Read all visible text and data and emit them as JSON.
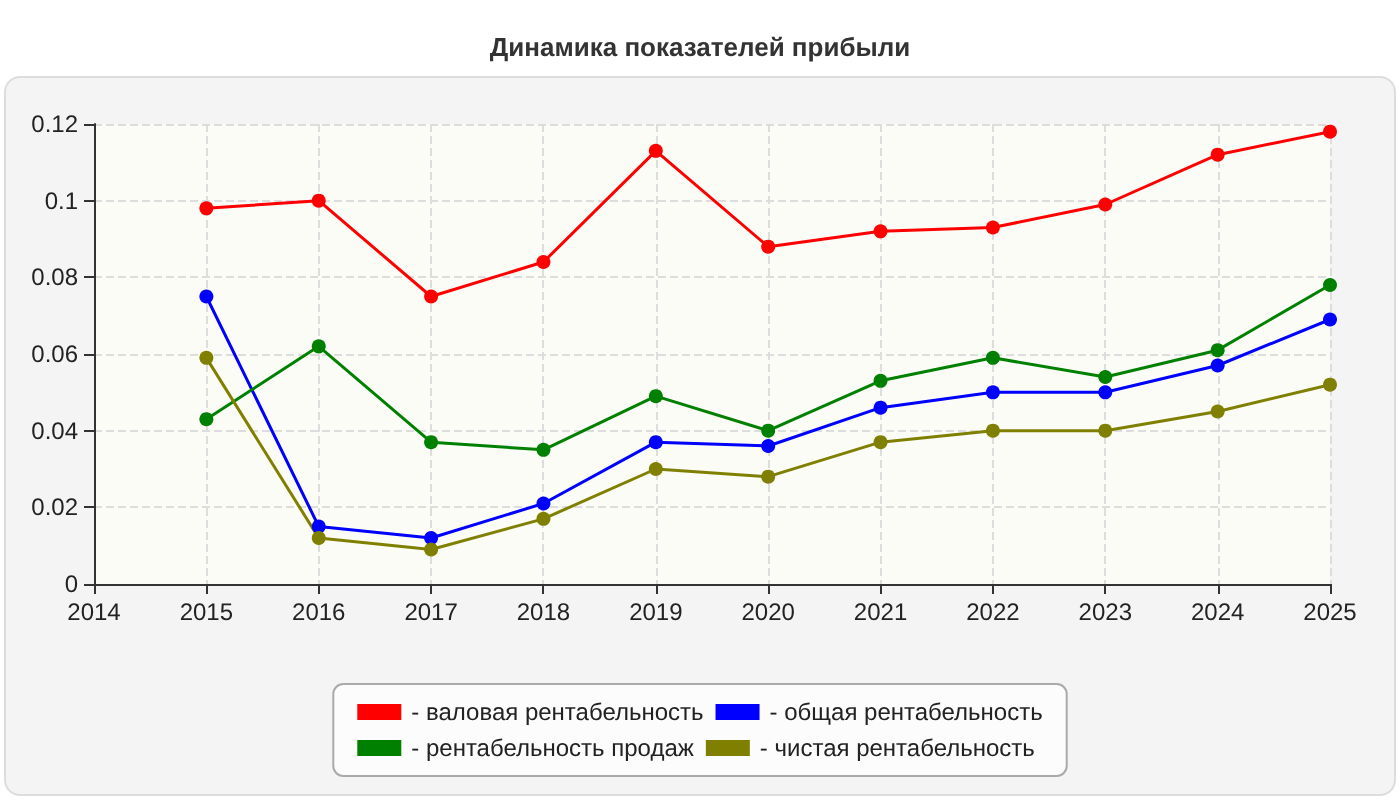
{
  "chart_data": {
    "type": "line",
    "title": "Динамика показателей прибыли",
    "x": [
      2015,
      2016,
      2017,
      2018,
      2019,
      2020,
      2021,
      2022,
      2023,
      2024,
      2025
    ],
    "xlim": [
      2014,
      2025
    ],
    "xticks": [
      2014,
      2015,
      2016,
      2017,
      2018,
      2019,
      2020,
      2021,
      2022,
      2023,
      2024,
      2025
    ],
    "ylim": [
      0,
      0.12
    ],
    "yticks": [
      0,
      0.02,
      0.04,
      0.06,
      0.08,
      0.1,
      0.12
    ],
    "grid": true,
    "legend": "bottom",
    "marker": "circle",
    "line_style": "solid",
    "series": [
      {
        "name": "- валовая рентабельность",
        "color": "#ff0000",
        "values": [
          0.098,
          0.1,
          0.075,
          0.084,
          0.113,
          0.088,
          0.092,
          0.093,
          0.099,
          0.112,
          0.118
        ]
      },
      {
        "name": "- общая рентабельность",
        "color": "#0000ff",
        "values": [
          0.075,
          0.015,
          0.012,
          0.021,
          0.037,
          0.036,
          0.046,
          0.05,
          0.05,
          0.057,
          0.069
        ]
      },
      {
        "name": "- рентабельность продаж",
        "color": "#008000",
        "values": [
          0.043,
          0.062,
          0.037,
          0.035,
          0.049,
          0.04,
          0.053,
          0.059,
          0.054,
          0.061,
          0.078
        ]
      },
      {
        "name": "- чистая рентабельность",
        "color": "#808000",
        "values": [
          0.059,
          0.012,
          0.009,
          0.017,
          0.03,
          0.028,
          0.037,
          0.04,
          0.04,
          0.045,
          0.052
        ]
      }
    ]
  }
}
